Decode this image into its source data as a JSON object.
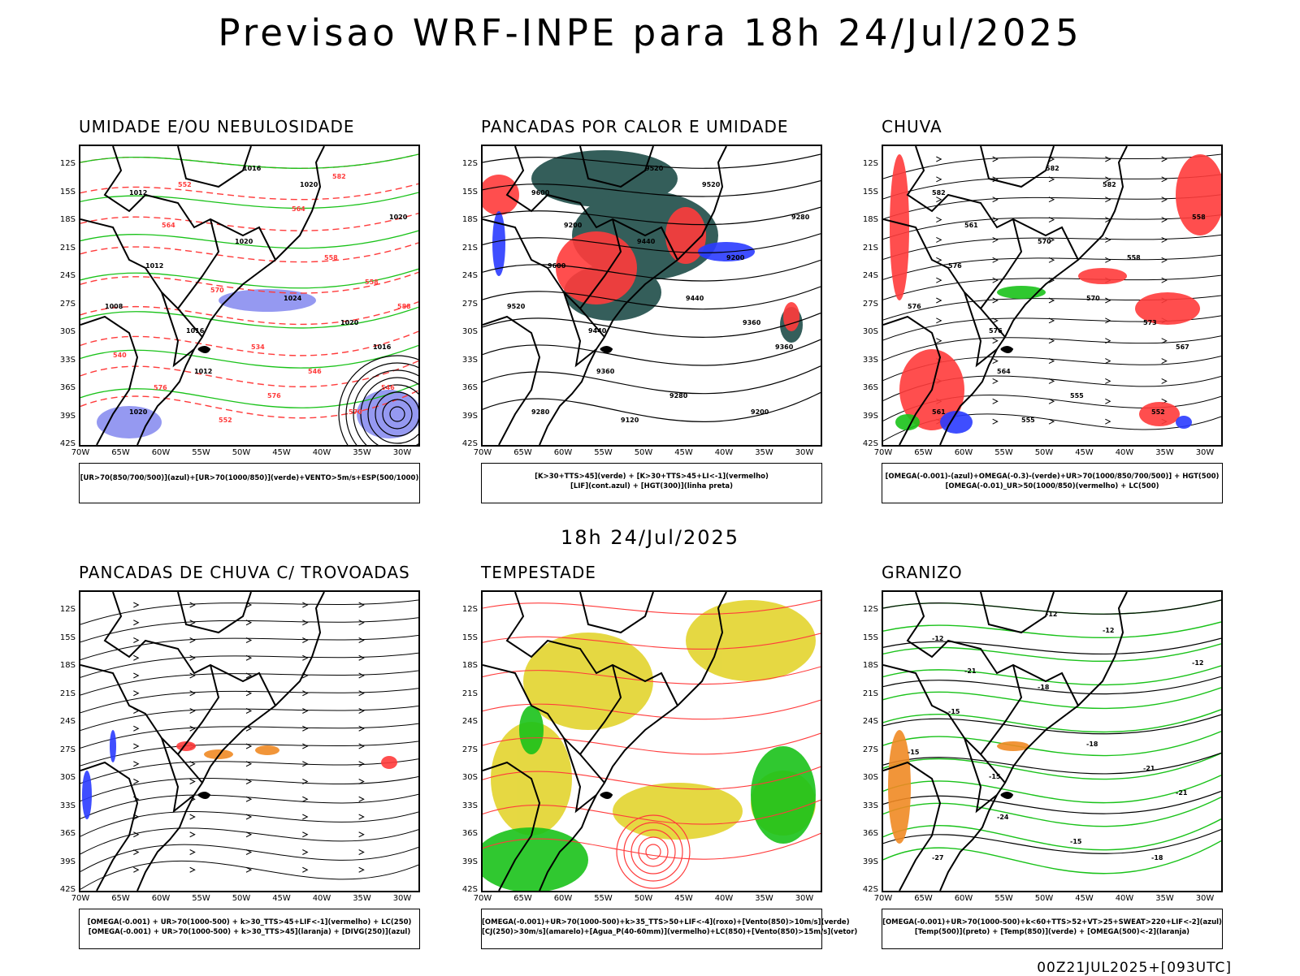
{
  "title": "Previsao WRF-INPE  para 18h 24/Jul/2025",
  "mid_date": "18h 24/Jul/2025",
  "footer": "00Z21JUL2025+[093UTC]",
  "lat_labels": [
    "12S",
    "15S",
    "18S",
    "21S",
    "24S",
    "27S",
    "30S",
    "33S",
    "36S",
    "39S",
    "42S"
  ],
  "lon_labels": [
    "70W",
    "65W",
    "60W",
    "55W",
    "50W",
    "45W",
    "40W",
    "35W",
    "30W"
  ],
  "colors": {
    "humidity_blue": "#8a8ef0",
    "red": "#ff3b3b",
    "green": "#19c219",
    "dark_teal": "#1f4d49",
    "yellow": "#e3d42e",
    "orange": "#f08a24",
    "blue": "#2a3bff"
  },
  "panels": [
    {
      "title": "UMIDADE E/OU NEBULOSIDADE",
      "legend": [
        "[UR>70(850/700/500)](azul)+[UR>70(1000/850)](verde)+VENTO>5m/s+ESP(500/1000)"
      ],
      "contour_labels": [
        "1012",
        "1016",
        "1020",
        "1008",
        "1012",
        "1016",
        "1020",
        "1024",
        "1020",
        "1016",
        "1012",
        "1020",
        "1020",
        "576",
        "570",
        "564",
        "558",
        "552",
        "546",
        "540",
        "534",
        "546",
        "552",
        "558",
        "564",
        "570",
        "576",
        "582",
        "588"
      ]
    },
    {
      "title": "PANCADAS POR CALOR E UMIDADE",
      "legend": [
        "[K>30+TTS>45](verde) + [K>30+TTS>45+LI<-1](vermelho)",
        "[LIF](cont.azul) + [HGT(300)](linha preta)"
      ],
      "contour_labels": [
        "9600",
        "9520",
        "9520",
        "9520",
        "9600",
        "9440",
        "9440",
        "9440",
        "9360",
        "9360",
        "9360",
        "9280",
        "9280",
        "9280",
        "9200",
        "9200",
        "9200",
        "9120"
      ]
    },
    {
      "title": "CHUVA",
      "legend": [
        "[OMEGA(-0.001)-(azul)+OMEGA(-0.3)-(verde)+UR>70(1000/850/700/500)] + HGT(500)",
        "[OMEGA(-0.01)_UR>50(1000/850)(vermelho) + LC(500)"
      ],
      "contour_labels": [
        "582",
        "582",
        "582",
        "576",
        "576",
        "576",
        "570",
        "570",
        "573",
        "567",
        "564",
        "561",
        "558",
        "555",
        "552",
        "561",
        "558",
        "555"
      ]
    },
    {
      "title": "PANCADAS DE CHUVA C/ TROVOADAS",
      "legend": [
        "[OMEGA(-0.001) + UR>70(1000-500) + k>30_TTS>45+LIF<-1](vermelho) + LC(250)",
        "[OMEGA(-0.001) + UR>70(1000-500) + k>30_TTS>45](laranja) + [DIVG(250)](azul)"
      ],
      "contour_labels": []
    },
    {
      "title": "TEMPESTADE",
      "legend": [
        "[OMEGA(-0.001)+UR>70(1000-500)+k>35_TTS>50+LIF<-4](roxo)+[Vento(850)>10m/s](verde)",
        "[CJ(250)>30m/s](amarelo)+[Agua_P(40-60mm)](vermelho)+LC(850)+[Vento(850)>15m/s](vetor)"
      ],
      "contour_labels": []
    },
    {
      "title": "GRANIZO",
      "legend": [
        "[OMEGA(-0.001)+UR>70(1000-500)+k<60+TTS>52+VT>25+SWEAT>220+LIF<-2](azul)",
        "[Temp(500)](preto) + [Temp(850)](verde) + [OMEGA(500)<-2](laranja)"
      ],
      "contour_labels": [
        "-12",
        "-12",
        "-12",
        "-15",
        "-15",
        "-15",
        "-18",
        "-18",
        "-21",
        "-21",
        "-24",
        "-27",
        "-12",
        "-15",
        "-18",
        "-21"
      ]
    }
  ]
}
